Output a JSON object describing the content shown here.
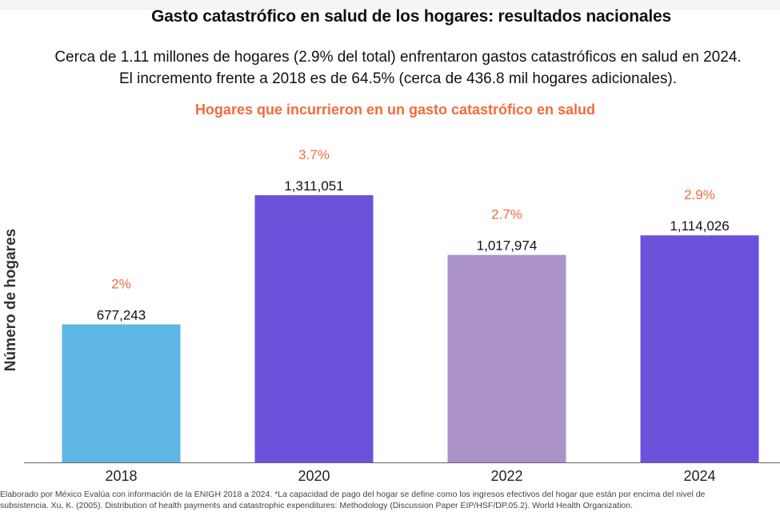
{
  "title": "Gasto catastrófico en salud de los hogares: resultados nacionales",
  "subtitle": "Cerca de 1.11 millones de hogares (2.9% del total) enfrentaron gastos catastróficos en salud en 2024. El incremento frente a 2018 es de 64.5% (cerca de 436.8 mil hogares adicionales).",
  "source": "Elaborado por México Evalúa con información de la ENIGH 2018 a 2024. *La capacidad de pago del hogar se define como los ingresos efectivos del hogar que están por encima del nivel de subsistencia. Xu, K. (2005). Distribution of health payments and catastrophic expenditures: Methodology (Discussion Paper EIP/HSF/DP.05.2). World Health Organization.",
  "colors": {
    "accent": "#f26b3a",
    "bar_2018": "#5eb6e4",
    "bar_2020": "#6c52db",
    "bar_2022": "#ab93c9",
    "bar_2024": "#6c52db"
  },
  "chart_data": {
    "type": "bar",
    "title": "Hogares que incurrieron en un gasto catastrófico en salud",
    "xlabel": "",
    "ylabel": "Número de hogares",
    "ylim": [
      0,
      1400000
    ],
    "grid": false,
    "categories": [
      "2018",
      "2020",
      "2022",
      "2024"
    ],
    "values": [
      677243,
      1311051,
      1017974,
      1114026
    ],
    "value_labels": [
      "677,243",
      "1,311,051",
      "1,017,974",
      "1,114,026"
    ],
    "percent_labels": [
      "2%",
      "3.7%",
      "2.7%",
      "2.9%"
    ],
    "bar_colors": [
      "#5eb6e4",
      "#6c52db",
      "#ab93c9",
      "#6c52db"
    ]
  }
}
